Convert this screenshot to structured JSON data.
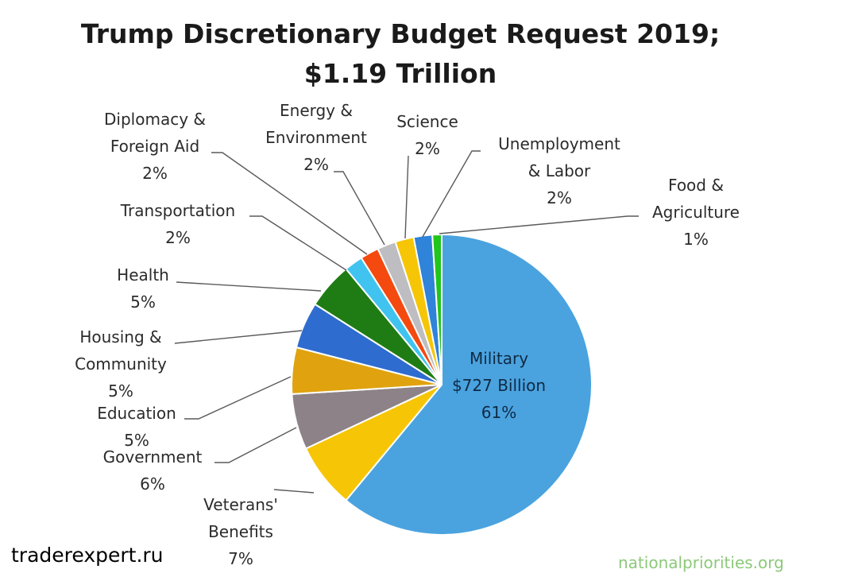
{
  "chart_data": {
    "type": "pie",
    "title": "Trump Discretionary Budget Request 2019;",
    "subtitle": "$1.19 Trillion",
    "slices": [
      {
        "lines": [
          "Military",
          "$727 Billion",
          "61%"
        ],
        "value": 61,
        "color": "#4aa3df"
      },
      {
        "lines": [
          "Veterans'",
          "Benefits",
          "7%"
        ],
        "value": 7,
        "color": "#f6c506"
      },
      {
        "lines": [
          "Government",
          "6%"
        ],
        "value": 6,
        "color": "#8c8287"
      },
      {
        "lines": [
          "Education",
          "5%"
        ],
        "value": 5,
        "color": "#e0a30f"
      },
      {
        "lines": [
          "Housing &",
          "Community",
          "5%"
        ],
        "value": 5,
        "color": "#2f6ccf"
      },
      {
        "lines": [
          "Health",
          "5%"
        ],
        "value": 5,
        "color": "#1f7c14"
      },
      {
        "lines": [
          "Transportation",
          "2%"
        ],
        "value": 2,
        "color": "#40c3ef"
      },
      {
        "lines": [
          "Diplomacy &",
          "Foreign Aid",
          "2%"
        ],
        "value": 2,
        "color": "#f4490f"
      },
      {
        "lines": [
          "Energy &",
          "Environment",
          "2%"
        ],
        "value": 2,
        "color": "#bdbdc2"
      },
      {
        "lines": [
          "Science",
          "2%"
        ],
        "value": 2,
        "color": "#f6c506"
      },
      {
        "lines": [
          "Unemployment",
          "& Labor",
          "2%"
        ],
        "value": 2,
        "color": "#2f83d8"
      },
      {
        "lines": [
          "Food &",
          "Agriculture",
          "1%"
        ],
        "value": 1,
        "color": "#22c51b"
      }
    ]
  },
  "watermark": {
    "site": "traderexpert.ru",
    "source": "nationalpriorities.org"
  }
}
